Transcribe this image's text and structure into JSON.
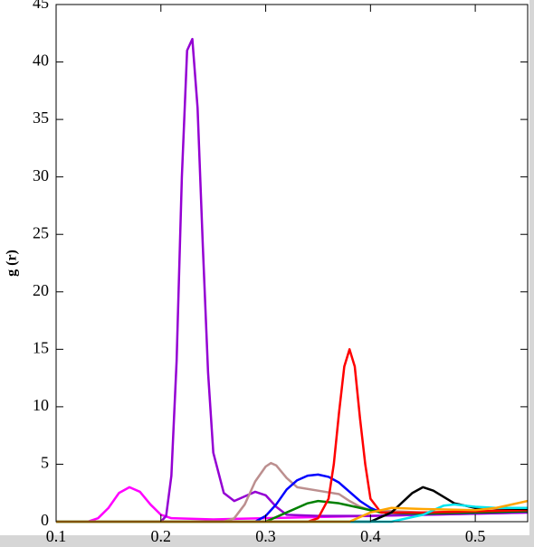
{
  "chart_data": {
    "type": "line",
    "y_label": "g (r)",
    "xlim": [
      0.1,
      0.55
    ],
    "ylim": [
      0,
      45
    ],
    "xticks": [
      0.1,
      0.2,
      0.3,
      0.4,
      0.5
    ],
    "yticks": [
      0,
      5,
      10,
      15,
      20,
      25,
      30,
      35,
      40,
      45
    ],
    "series": [
      {
        "color": "#ff00ff",
        "x": [
          0.1,
          0.13,
          0.14,
          0.15,
          0.16,
          0.17,
          0.18,
          0.19,
          0.2,
          0.21,
          0.25,
          0.3,
          0.35,
          0.4,
          0.45,
          0.5,
          0.55
        ],
        "values": [
          0,
          0,
          0.3,
          1.2,
          2.5,
          3.0,
          2.6,
          1.5,
          0.6,
          0.3,
          0.2,
          0.3,
          0.4,
          0.5,
          0.6,
          0.7,
          0.8
        ]
      },
      {
        "color": "#9400d3",
        "x": [
          0.1,
          0.2,
          0.205,
          0.21,
          0.215,
          0.22,
          0.225,
          0.23,
          0.235,
          0.24,
          0.245,
          0.25,
          0.26,
          0.27,
          0.28,
          0.29,
          0.3,
          0.31,
          0.32,
          0.35,
          0.4,
          0.45,
          0.5,
          0.55
        ],
        "values": [
          0,
          0,
          0.5,
          4,
          14,
          30,
          41,
          42,
          36,
          24,
          13,
          6,
          2.5,
          1.8,
          2.2,
          2.6,
          2.3,
          1.3,
          0.6,
          0.5,
          0.5,
          0.6,
          0.7,
          0.8
        ]
      },
      {
        "color": "#bc8f8f",
        "x": [
          0.1,
          0.26,
          0.27,
          0.28,
          0.29,
          0.3,
          0.305,
          0.31,
          0.32,
          0.33,
          0.35,
          0.37,
          0.38,
          0.39,
          0.4,
          0.45,
          0.5,
          0.55
        ],
        "values": [
          0,
          0,
          0.3,
          1.5,
          3.5,
          4.8,
          5.1,
          4.9,
          3.8,
          3.0,
          2.7,
          2.4,
          1.8,
          1.3,
          1.0,
          0.8,
          0.9,
          1.0
        ]
      },
      {
        "color": "#0000ff",
        "x": [
          0.1,
          0.29,
          0.3,
          0.31,
          0.32,
          0.33,
          0.34,
          0.35,
          0.36,
          0.37,
          0.38,
          0.39,
          0.4,
          0.41,
          0.45,
          0.5,
          0.55
        ],
        "values": [
          0,
          0,
          0.5,
          1.5,
          2.8,
          3.6,
          4.0,
          4.1,
          3.9,
          3.4,
          2.6,
          1.8,
          1.2,
          0.8,
          0.7,
          0.8,
          0.9
        ]
      },
      {
        "color": "#008000",
        "x": [
          0.1,
          0.3,
          0.32,
          0.34,
          0.35,
          0.37,
          0.39,
          0.41,
          0.45,
          0.5,
          0.55
        ],
        "values": [
          0,
          0,
          0.8,
          1.6,
          1.8,
          1.6,
          1.2,
          0.8,
          0.7,
          0.8,
          0.9
        ]
      },
      {
        "color": "#ff0000",
        "x": [
          0.1,
          0.34,
          0.35,
          0.36,
          0.365,
          0.37,
          0.375,
          0.38,
          0.385,
          0.39,
          0.395,
          0.4,
          0.41,
          0.45,
          0.5,
          0.55
        ],
        "values": [
          0,
          0,
          0.3,
          2,
          5,
          9.5,
          13.5,
          15,
          13.5,
          9,
          5,
          2,
          0.8,
          0.8,
          0.9,
          1.0
        ]
      },
      {
        "color": "#000000",
        "x": [
          0.1,
          0.4,
          0.42,
          0.44,
          0.45,
          0.46,
          0.48,
          0.5,
          0.55
        ],
        "values": [
          0,
          0,
          0.8,
          2.5,
          3.0,
          2.7,
          1.6,
          1.2,
          1.1
        ]
      },
      {
        "color": "#00e5ee",
        "x": [
          0.1,
          0.42,
          0.45,
          0.47,
          0.48,
          0.5,
          0.52,
          0.55
        ],
        "values": [
          0,
          0,
          0.6,
          1.4,
          1.5,
          1.3,
          1.2,
          1.2
        ]
      },
      {
        "color": "#ffa500",
        "x": [
          0.1,
          0.38,
          0.4,
          0.42,
          0.45,
          0.5,
          0.52,
          0.55
        ],
        "values": [
          0,
          0,
          0.8,
          1.2,
          1.1,
          1.0,
          1.2,
          1.8
        ]
      }
    ]
  }
}
